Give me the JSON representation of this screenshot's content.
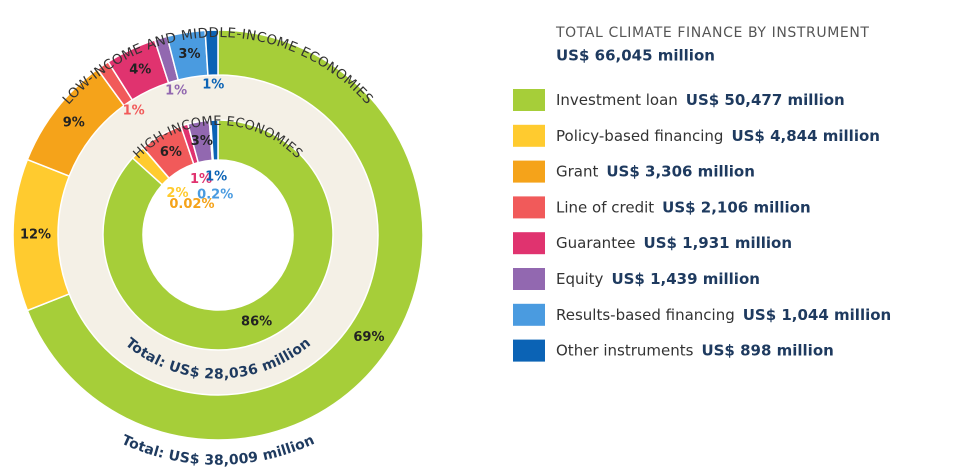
{
  "chart_data": {
    "type": "donut",
    "title": "TOTAL CLIMATE FINANCE BY INSTRUMENT",
    "total": "US$ 66,045 million",
    "categories": [
      "Investment loan",
      "Policy-based financing",
      "Grant",
      "Line of credit",
      "Guarantee",
      "Equity",
      "Results-based financing",
      "Other instruments"
    ],
    "colors": [
      "#a6ce39",
      "#ffcb2f",
      "#f5a31a",
      "#f15a5a",
      "#e0336f",
      "#9268b0",
      "#4a9be0",
      "#0b63b5"
    ],
    "amounts": [
      "US$ 50,477 million",
      "US$ 4,844 million",
      "US$ 3,306 million",
      "US$ 2,106 million",
      "US$ 1,931 million",
      "US$ 1,439 million",
      "US$ 1,044 million",
      "US$ 898 million"
    ],
    "series": [
      {
        "name": "LOW-INCOME AND MIDDLE-INCOME ECONOMIES",
        "total": "Total: US$ 38,009 million",
        "values": [
          69,
          12,
          9,
          1,
          4,
          1,
          3,
          1
        ],
        "value_labels": [
          "69%",
          "12%",
          "9%",
          "1%",
          "4%",
          "1%",
          "3%",
          "1%"
        ]
      },
      {
        "name": "HIGH-INCOME ECONOMIES",
        "total": "Total: US$ 28,036 million",
        "values": [
          86,
          2,
          0.02,
          6,
          1,
          3,
          0.2,
          1
        ],
        "value_labels": [
          "86%",
          "2%",
          "0.02%",
          "6%",
          "1%",
          "3%",
          "0.2%",
          "1%"
        ]
      }
    ]
  }
}
